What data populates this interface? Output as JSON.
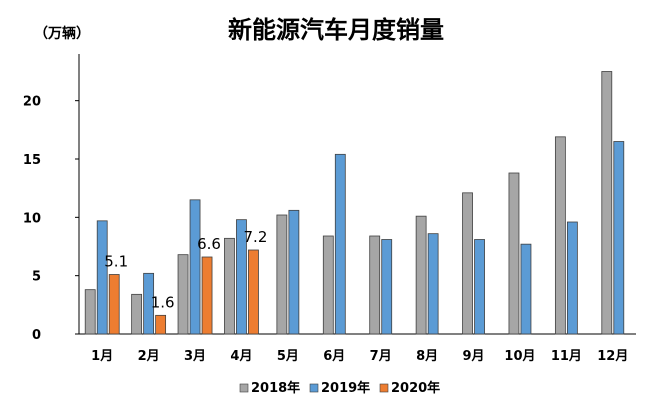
{
  "chart_data": {
    "type": "bar",
    "title": "新能源汽车月度销量",
    "unit_label": "（万辆）",
    "categories": [
      "1月",
      "2月",
      "3月",
      "4月",
      "5月",
      "6月",
      "7月",
      "8月",
      "9月",
      "10月",
      "11月",
      "12月"
    ],
    "series": [
      {
        "name": "2018年",
        "color": "#a6a6a6",
        "values": [
          3.8,
          3.4,
          6.8,
          8.2,
          10.2,
          8.4,
          8.4,
          10.1,
          12.1,
          13.8,
          16.9,
          22.5
        ]
      },
      {
        "name": "2019年",
        "color": "#5b9bd5",
        "values": [
          9.7,
          5.2,
          11.5,
          9.8,
          10.6,
          15.4,
          8.1,
          8.6,
          8.1,
          7.7,
          9.6,
          16.5
        ]
      },
      {
        "name": "2020年",
        "color": "#ed7d31",
        "values": [
          5.1,
          1.6,
          6.6,
          7.2,
          null,
          null,
          null,
          null,
          null,
          null,
          null,
          null
        ]
      }
    ],
    "data_labels": [
      {
        "category": "1月",
        "series": "2020年",
        "text": "5.1"
      },
      {
        "category": "2月",
        "series": "2020年",
        "text": "1.6"
      },
      {
        "category": "3月",
        "series": "2020年",
        "text": "6.6"
      },
      {
        "category": "4月",
        "series": "2020年",
        "text": "7.2"
      }
    ],
    "y_ticks": [
      0,
      5,
      10,
      15,
      20
    ],
    "ylim": [
      0,
      24
    ],
    "xlabel": "",
    "ylabel": "",
    "grid": false,
    "legend_position": "bottom"
  }
}
